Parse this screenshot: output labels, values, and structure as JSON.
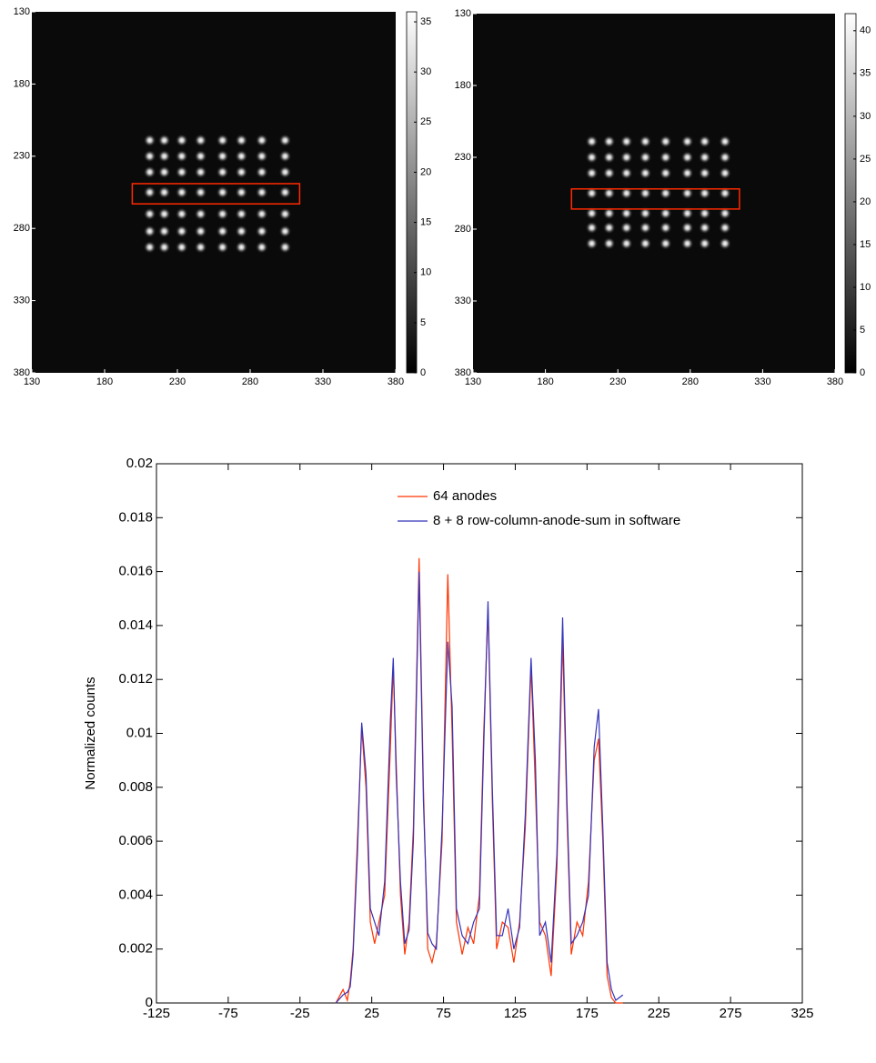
{
  "chart_data": [
    {
      "type": "heatmap",
      "xlim": [
        130,
        380
      ],
      "ylim": [
        380,
        130
      ],
      "xticks": [
        130,
        180,
        230,
        280,
        330,
        380
      ],
      "yticks": [
        130,
        180,
        230,
        280,
        330,
        380
      ],
      "clim": [
        0,
        36
      ],
      "cticks": [
        0,
        5,
        10,
        15,
        20,
        25,
        30,
        35
      ],
      "spot_x": [
        211,
        221,
        233,
        246,
        261,
        274,
        288,
        304
      ],
      "spot_y": [
        219,
        230,
        241,
        255,
        270,
        282,
        293
      ],
      "box_x": [
        199,
        314
      ],
      "box_y": [
        249,
        263
      ],
      "box_color": "#ff2a00"
    },
    {
      "type": "heatmap",
      "xlim": [
        130,
        380
      ],
      "ylim": [
        380,
        130
      ],
      "xticks": [
        130,
        180,
        230,
        280,
        330,
        380
      ],
      "yticks": [
        130,
        180,
        230,
        280,
        330,
        380
      ],
      "clim": [
        0,
        42
      ],
      "cticks": [
        0,
        5,
        10,
        15,
        20,
        25,
        30,
        35,
        40
      ],
      "spot_x": [
        212,
        224,
        236,
        249,
        263,
        278,
        290,
        304
      ],
      "spot_y": [
        219,
        230,
        241,
        255,
        269,
        279,
        290
      ],
      "box_x": [
        198,
        314
      ],
      "box_y": [
        252,
        266
      ],
      "box_color": "#ff2a00"
    },
    {
      "type": "line",
      "y_label": "Normalized counts",
      "xlim": [
        -125,
        325
      ],
      "ylim": [
        0,
        0.02
      ],
      "xticks": [
        -125,
        -75,
        -25,
        25,
        75,
        125,
        175,
        225,
        275,
        325
      ],
      "yticks": [
        0,
        0.002,
        0.004,
        0.006,
        0.008,
        0.01,
        0.012,
        0.014,
        0.016,
        0.018,
        0.02
      ],
      "x": [
        0,
        5,
        8,
        10,
        12,
        15,
        18,
        21,
        24,
        27,
        30,
        34,
        38,
        40,
        42,
        45,
        48,
        51,
        54,
        58,
        61,
        64,
        67,
        70,
        74,
        78,
        81,
        84,
        88,
        92,
        96,
        100,
        103,
        106,
        109,
        112,
        116,
        120,
        124,
        128,
        132,
        136,
        139,
        142,
        146,
        150,
        154,
        158,
        161,
        164,
        168,
        172,
        176,
        180,
        183,
        186,
        189,
        192,
        195,
        200
      ],
      "series": [
        {
          "name": "64 anodes",
          "color": "#ff3300",
          "values": [
            0,
            0.0005,
            0.0001,
            0.0008,
            0.002,
            0.006,
            0.0102,
            0.008,
            0.003,
            0.0022,
            0.003,
            0.004,
            0.0095,
            0.0125,
            0.009,
            0.004,
            0.0018,
            0.003,
            0.0065,
            0.0165,
            0.008,
            0.002,
            0.0015,
            0.0022,
            0.006,
            0.0159,
            0.01,
            0.003,
            0.0018,
            0.0028,
            0.0022,
            0.004,
            0.01,
            0.0146,
            0.0075,
            0.002,
            0.003,
            0.0028,
            0.0015,
            0.003,
            0.0065,
            0.0125,
            0.008,
            0.003,
            0.0025,
            0.001,
            0.005,
            0.0135,
            0.007,
            0.0018,
            0.003,
            0.0025,
            0.0045,
            0.009,
            0.0098,
            0.006,
            0.001,
            0.0002,
            0,
            0
          ]
        },
        {
          "name": "8 + 8 row-column-anode-sum in software",
          "color": "#3333bb",
          "values": [
            0,
            0.0003,
            0.0004,
            0.0006,
            0.0018,
            0.0055,
            0.0104,
            0.0085,
            0.0035,
            0.003,
            0.0025,
            0.0045,
            0.0105,
            0.0128,
            0.0085,
            0.0045,
            0.0022,
            0.0027,
            0.006,
            0.016,
            0.0075,
            0.0026,
            0.0022,
            0.002,
            0.0065,
            0.0134,
            0.011,
            0.0035,
            0.0025,
            0.0022,
            0.003,
            0.0035,
            0.0095,
            0.0149,
            0.008,
            0.0025,
            0.0025,
            0.0035,
            0.002,
            0.0028,
            0.007,
            0.0128,
            0.009,
            0.0025,
            0.003,
            0.0015,
            0.0055,
            0.0143,
            0.0075,
            0.0022,
            0.0025,
            0.003,
            0.004,
            0.0095,
            0.0109,
            0.0065,
            0.0015,
            0.0005,
            0.0001,
            0.0003
          ]
        }
      ]
    }
  ]
}
